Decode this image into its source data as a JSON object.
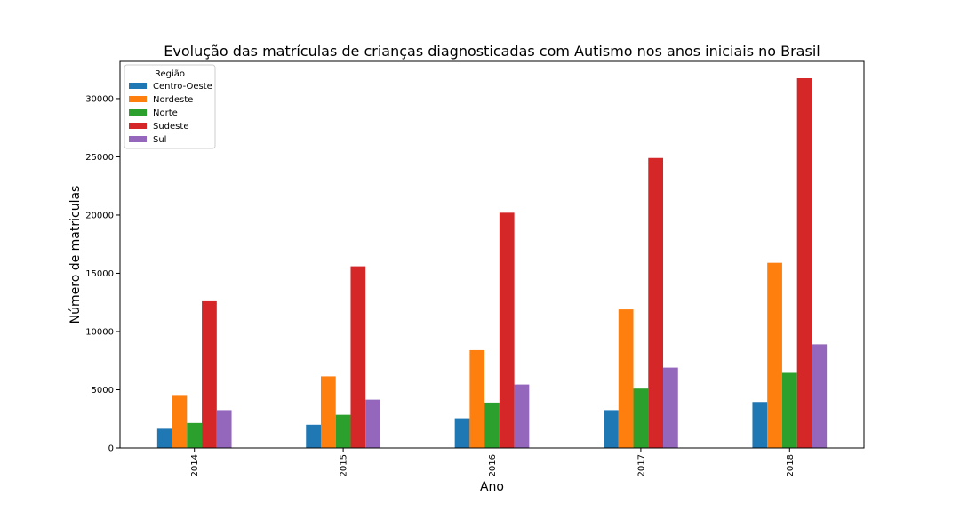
{
  "chart_data": {
    "type": "bar",
    "title": "Evolução das matrículas de crianças diagnosticadas com Autismo nos anos iniciais no Brasil",
    "xlabel": "Ano",
    "ylabel": "Número de matriculas",
    "categories": [
      "2014",
      "2015",
      "2016",
      "2017",
      "2018"
    ],
    "ylim": [
      0,
      33200
    ],
    "yticks": [
      0,
      5000,
      10000,
      15000,
      20000,
      25000,
      30000
    ],
    "legend": {
      "title": "Região",
      "position": "top-left"
    },
    "grid": false,
    "series": [
      {
        "name": "Centro-Oeste",
        "color": "#1f77b4",
        "values": [
          1650,
          2000,
          2550,
          3250,
          3950
        ]
      },
      {
        "name": "Nordeste",
        "color": "#ff7f0e",
        "values": [
          4550,
          6150,
          8400,
          11900,
          15900
        ]
      },
      {
        "name": "Norte",
        "color": "#2ca02c",
        "values": [
          2150,
          2850,
          3900,
          5100,
          6450
        ]
      },
      {
        "name": "Sudeste",
        "color": "#d62728",
        "values": [
          12600,
          15600,
          20200,
          24900,
          31750
        ]
      },
      {
        "name": "Sul",
        "color": "#9467bd",
        "values": [
          3250,
          4150,
          5450,
          6900,
          8900
        ]
      }
    ]
  }
}
